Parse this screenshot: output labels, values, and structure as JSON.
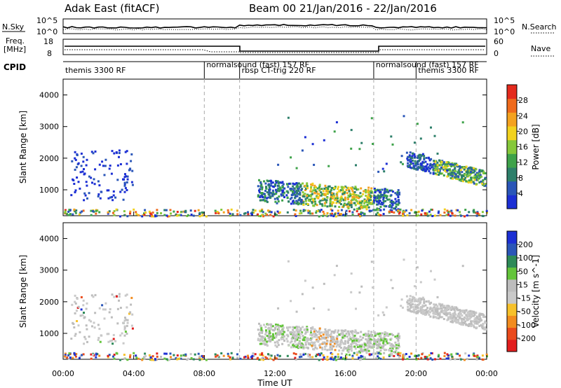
{
  "header": {
    "title_left": "Adak East (fitACF)",
    "title_right": "Beam 00  21/Jan/2016 - 22/Jan/2016"
  },
  "top_panels": {
    "nsky_label": "N.Sky",
    "nsky_ticks": [
      "10^5",
      "10^0"
    ],
    "nsky_right_ticks": [
      "10^5",
      "10^0"
    ],
    "nsearch_label": "N.Search",
    "freq_label_1": "Freq.",
    "freq_label_2": "[MHz]",
    "freq_ticks": [
      "18",
      "8"
    ],
    "nave_ticks": [
      "60",
      "0"
    ],
    "nave_label": "Nave",
    "cpid_label": "CPID",
    "cpid_segments": [
      {
        "label": "themis 3300 RF",
        "start": 0,
        "end": 8
      },
      {
        "label": "normalsound (fast) 157 RF",
        "start": 8,
        "end": 10
      },
      {
        "label": "rbsp CT-trig 220 RF",
        "start": 10,
        "end": 17.6
      },
      {
        "label": "normalsound (fast) 157 RF",
        "start": 17.6,
        "end": 20
      },
      {
        "label": "themis 3300 RF",
        "start": 20,
        "end": 24
      }
    ]
  },
  "chart_data": [
    {
      "type": "heatmap",
      "ylabel": "Slant Range [km]",
      "yticks": [
        "1000",
        "2000",
        "3000",
        "4000"
      ],
      "ylim": [
        180,
        4500
      ],
      "xlim": [
        0,
        24
      ],
      "colorbar": {
        "label": "Power [dB]",
        "ticks": [
          "4",
          "8",
          "12",
          "16",
          "20",
          "24",
          "28"
        ],
        "range": [
          0,
          30
        ]
      }
    },
    {
      "type": "heatmap",
      "ylabel": "Slant Range [km]",
      "yticks": [
        "1000",
        "2000",
        "3000",
        "4000"
      ],
      "ylim": [
        180,
        4500
      ],
      "xlim": [
        0,
        24
      ],
      "xlabel": "Time UT",
      "xticks": [
        "00:00",
        "04:00",
        "08:00",
        "12:00",
        "16:00",
        "20:00",
        "00:00"
      ],
      "colorbar": {
        "label": "Velocity [m s^-1]",
        "ticks": [
          "200",
          "100",
          "50",
          "15",
          "-15",
          "-50",
          "-100",
          "-200"
        ]
      }
    }
  ],
  "colors": {
    "power": [
      "#1c2fd4",
      "#2a56b8",
      "#2d7f6a",
      "#3ea24a",
      "#86c83a",
      "#f2d21e",
      "#f4a21f",
      "#ef6a1c",
      "#e42a1d"
    ],
    "velocity": [
      "#1c2fd4",
      "#2a56b8",
      "#2d8a58",
      "#63c43a",
      "#bdbdbd",
      "#c9c9c9",
      "#f7c12a",
      "#f28c1f",
      "#ea4a1c",
      "#e21e1e"
    ]
  }
}
